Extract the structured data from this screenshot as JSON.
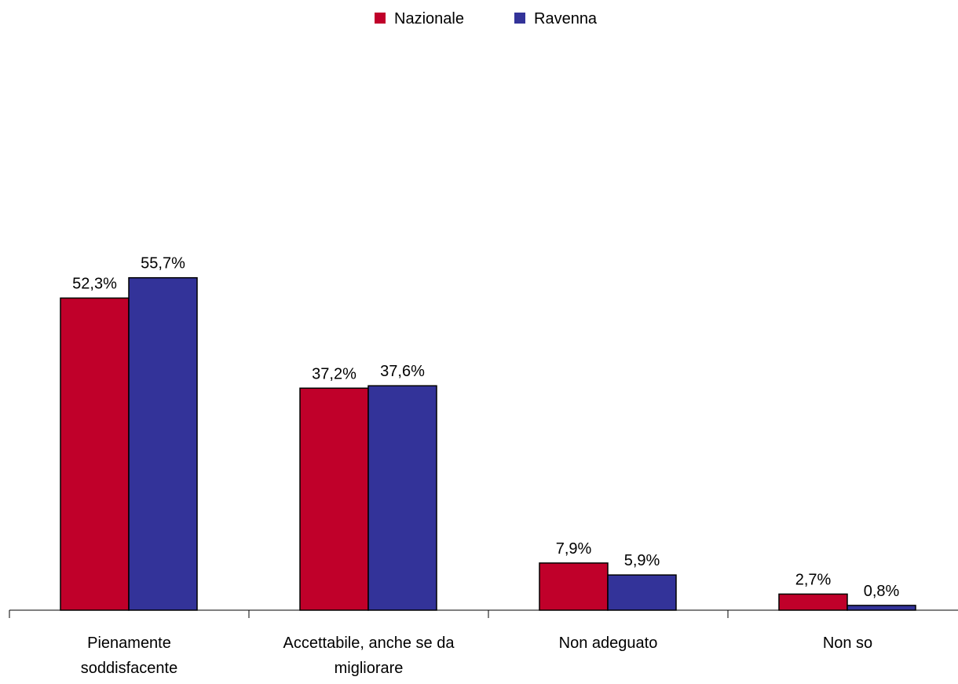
{
  "chart_data": {
    "type": "bar",
    "categories": [
      [
        "Pienamente",
        "soddisfacente"
      ],
      [
        "Accettabile, anche se da",
        "migliorare"
      ],
      [
        "Non adeguato"
      ],
      [
        "Non so"
      ]
    ],
    "series": [
      {
        "name": "Nazionale",
        "color": "#c0002a",
        "values": [
          52.3,
          37.2,
          7.9,
          2.7
        ],
        "value_labels": [
          "52,3%",
          "37,2%",
          "7,9%",
          "2,7%"
        ]
      },
      {
        "name": "Ravenna",
        "color": "#333399",
        "values": [
          55.7,
          37.6,
          5.9,
          0.8
        ],
        "value_labels": [
          "55,7%",
          "37,6%",
          "5,9%",
          "0,8%"
        ]
      }
    ],
    "legend": "top"
  }
}
